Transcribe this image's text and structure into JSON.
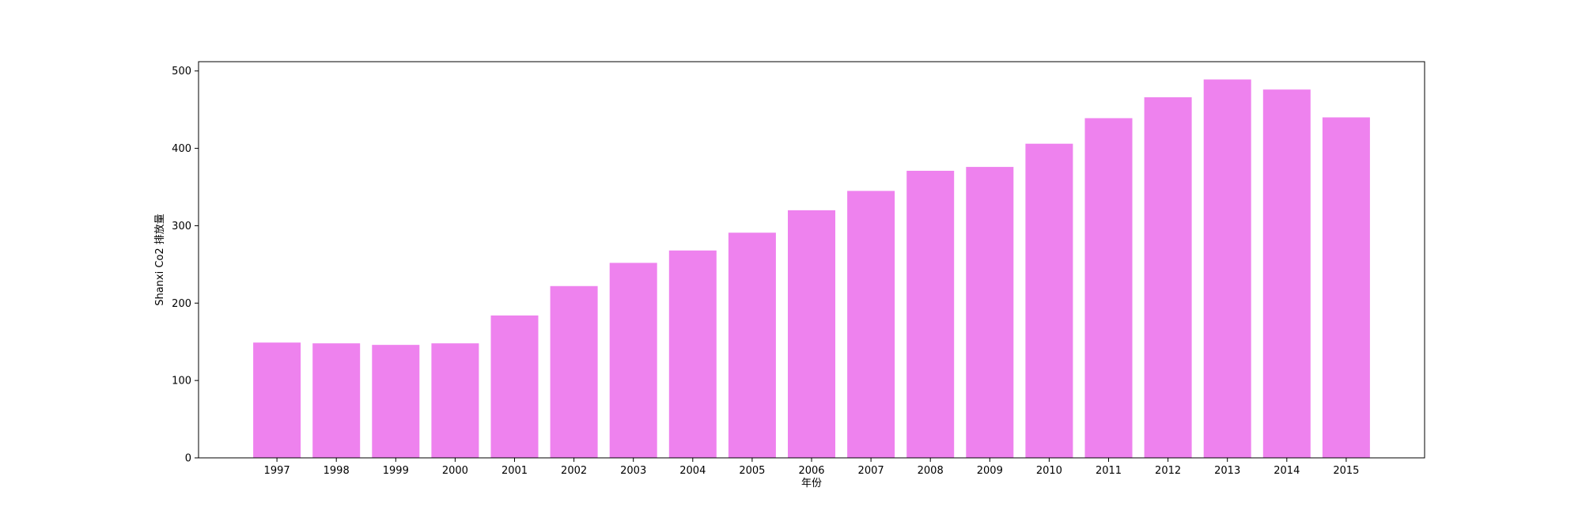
{
  "chart_data": {
    "type": "bar",
    "categories": [
      "1997",
      "1998",
      "1999",
      "2000",
      "2001",
      "2002",
      "2003",
      "2004",
      "2005",
      "2006",
      "2007",
      "2008",
      "2009",
      "2010",
      "2011",
      "2012",
      "2013",
      "2014",
      "2015"
    ],
    "values": [
      149,
      148,
      146,
      148,
      184,
      222,
      252,
      268,
      291,
      320,
      345,
      371,
      376,
      406,
      439,
      466,
      489,
      476,
      440
    ],
    "xlabel": "年份",
    "ylabel": "Shanxi Co2 排放量",
    "ylim": [
      0,
      512
    ],
    "yticks": [
      0,
      100,
      200,
      300,
      400,
      500
    ],
    "bar_color": "#ee82ee",
    "grid": false,
    "legend": "none"
  }
}
